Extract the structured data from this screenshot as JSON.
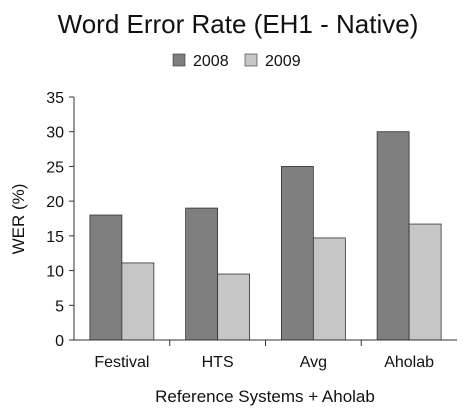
{
  "chart_data": {
    "type": "bar",
    "title": "Word Error Rate (EH1 - Native)",
    "xlabel": "Reference Systems + Aholab",
    "ylabel": "WER (%)",
    "categories": [
      "Festival",
      "HTS",
      "Avg",
      "Aholab"
    ],
    "series": [
      {
        "name": "2008",
        "values": [
          18,
          19,
          25,
          30
        ],
        "color": "#7f7f7f"
      },
      {
        "name": "2009",
        "values": [
          11.1,
          9.5,
          14.7,
          16.7
        ],
        "color": "#c6c6c6"
      }
    ],
    "ylim": [
      0,
      35
    ],
    "yticks": [
      "0",
      "5",
      "10",
      "15",
      "20",
      "25",
      "30",
      "35"
    ],
    "grid": false,
    "legend_position": "top-center"
  }
}
